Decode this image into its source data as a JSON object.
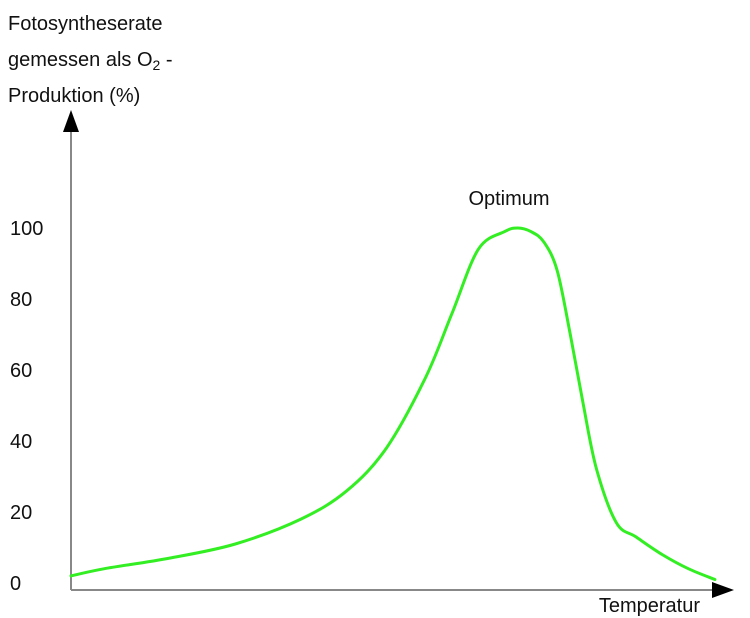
{
  "chart_data": {
    "type": "line",
    "title": "",
    "ylabel_parts": {
      "line1": "Fotosyntheserate",
      "line2_prefix": "gemessen als O",
      "line2_sub": "2",
      "line2_suffix": " -",
      "line3": "Produktion (%)"
    },
    "xlabel": "Temperatur",
    "y_ticks": [
      "100",
      "80",
      "60",
      "40",
      "20",
      "0"
    ],
    "ylim": [
      0,
      100
    ],
    "xlim": [
      0,
      100
    ],
    "x_ticks_shown": false,
    "annotation": {
      "text": "Optimum"
    },
    "colors": {
      "curve": "#33ee22",
      "axis": "#000000"
    },
    "series": [
      {
        "x": [
          0,
          5,
          15,
          25,
          35,
          42,
          48,
          54,
          58,
          62,
          66,
          68,
          70,
          72,
          74,
          76,
          78,
          80,
          83,
          86,
          90,
          94,
          98
        ],
        "y": [
          2,
          4,
          7,
          11,
          18,
          26,
          38,
          58,
          76,
          94,
          99,
          100,
          99,
          96,
          88,
          70,
          50,
          32,
          17,
          13,
          8,
          4,
          1
        ]
      }
    ]
  }
}
